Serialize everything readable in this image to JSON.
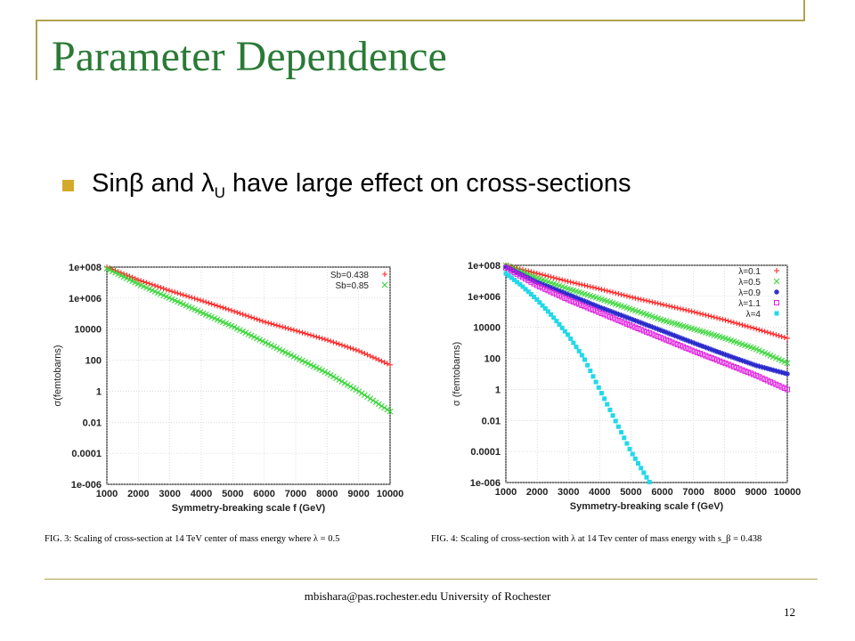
{
  "slide": {
    "title": "Parameter Dependence",
    "bullet": {
      "text_before": "Sinβ and λ",
      "subscript": "U",
      "text_after": " have large effect on cross-sections"
    },
    "footer": "mbishara@pas.rochester.edu University of Rochester",
    "page_number": "12"
  },
  "colors": {
    "title": "#2a7a36",
    "accent": "#b0a24e",
    "bullet": "#d4aa2a"
  },
  "chart_data": [
    {
      "type": "scatter",
      "xlabel": "Symmetry-breaking scale f (GeV)",
      "ylabel": "σ(femtobarns)",
      "x_ticks": [
        "1000",
        "2000",
        "3000",
        "4000",
        "5000",
        "6000",
        "7000",
        "8000",
        "9000",
        "10000"
      ],
      "y_ticks": [
        "1e+008",
        "1e+006",
        "10000",
        "100",
        "1",
        "0.01",
        "0.0001",
        "1e-006"
      ],
      "xlim": [
        1000,
        10000
      ],
      "ylim_log10": [
        -6,
        8
      ],
      "log_y": true,
      "grid": true,
      "legend_position": "top-right",
      "caption": "FIG. 3: Scaling of cross-section at 14 TeV center of mass energy where λ = 0.5",
      "series": [
        {
          "name": "Sb=0.438",
          "color": "#ff2a2a",
          "marker": "plus",
          "x": [
            1000,
            2000,
            3000,
            4000,
            5000,
            6000,
            7000,
            8000,
            9000,
            10000
          ],
          "y": [
            100000000.0,
            15000000.0,
            3000000.0,
            700000.0,
            150000.0,
            30000.0,
            8000.0,
            2000.0,
            400,
            50
          ]
        },
        {
          "name": "Sb=0.85",
          "color": "#3bd63b",
          "marker": "x",
          "x": [
            1000,
            2000,
            3000,
            4000,
            5000,
            6000,
            7000,
            8000,
            9000,
            10000
          ],
          "y": [
            80000000.0,
            8000000.0,
            1000000.0,
            120000.0,
            15000.0,
            1500.0,
            150,
            15,
            1,
            0.05
          ]
        }
      ]
    },
    {
      "type": "scatter",
      "xlabel": "Symmetry-breaking scale f (GeV)",
      "ylabel": "σ (femtobarns)",
      "x_ticks": [
        "1000",
        "2000",
        "3000",
        "4000",
        "5000",
        "6000",
        "7000",
        "8000",
        "9000",
        "10000"
      ],
      "y_ticks": [
        "1e+008",
        "1e+006",
        "10000",
        "100",
        "1",
        "0.01",
        "0.0001",
        "1e-006"
      ],
      "xlim": [
        1000,
        10000
      ],
      "ylim_log10": [
        -6,
        8
      ],
      "log_y": true,
      "grid": true,
      "legend_position": "top-right",
      "caption": "FIG. 4: Scaling of cross-section with λ at 14 Tev center of mass energy with s_β = 0.438",
      "series": [
        {
          "name": "λ=0.1",
          "color": "#ff2a2a",
          "marker": "plus",
          "x": [
            1000,
            2000,
            3000,
            4000,
            5000,
            6000,
            7000,
            8000,
            9000,
            10000
          ],
          "y": [
            100000000.0,
            30000000.0,
            9000000.0,
            3000000.0,
            900000.0,
            300000.0,
            100000.0,
            30000.0,
            8000.0,
            2000.0
          ]
        },
        {
          "name": "λ=0.5",
          "color": "#3bd63b",
          "marker": "x",
          "x": [
            1000,
            2000,
            3000,
            4000,
            5000,
            6000,
            7000,
            8000,
            9000,
            10000
          ],
          "y": [
            100000000.0,
            15000000.0,
            3000000.0,
            700000.0,
            150000.0,
            30000.0,
            8000.0,
            2000.0,
            400,
            50
          ]
        },
        {
          "name": "λ=0.9",
          "color": "#2a2acc",
          "marker": "star",
          "x": [
            1000,
            2000,
            3000,
            4000,
            5000,
            6000,
            7000,
            8000,
            9000,
            10000
          ],
          "y": [
            80000000.0,
            8000000.0,
            1300000.0,
            200000.0,
            35000.0,
            6000.0,
            1000.0,
            180,
            35,
            10
          ]
        },
        {
          "name": "λ=1.1",
          "color": "#e020e0",
          "marker": "square",
          "x": [
            1000,
            2000,
            3000,
            4000,
            5000,
            6000,
            7000,
            8000,
            9000,
            10000
          ],
          "y": [
            70000000.0,
            5000000.0,
            600000.0,
            90000.0,
            13000.0,
            2000.0,
            300,
            50,
            8,
            1
          ]
        },
        {
          "name": "λ=4",
          "color": "#22d8e8",
          "marker": "filled-square",
          "x": [
            1000,
            1500,
            2000,
            2500,
            3000,
            3500,
            4000,
            4500,
            5000,
            5300,
            5600
          ],
          "y": [
            30000000.0,
            5000000.0,
            600000.0,
            50000.0,
            3000.0,
            100,
            1,
            0.01,
            0.0001,
            1e-05,
            1e-06
          ]
        }
      ]
    }
  ]
}
